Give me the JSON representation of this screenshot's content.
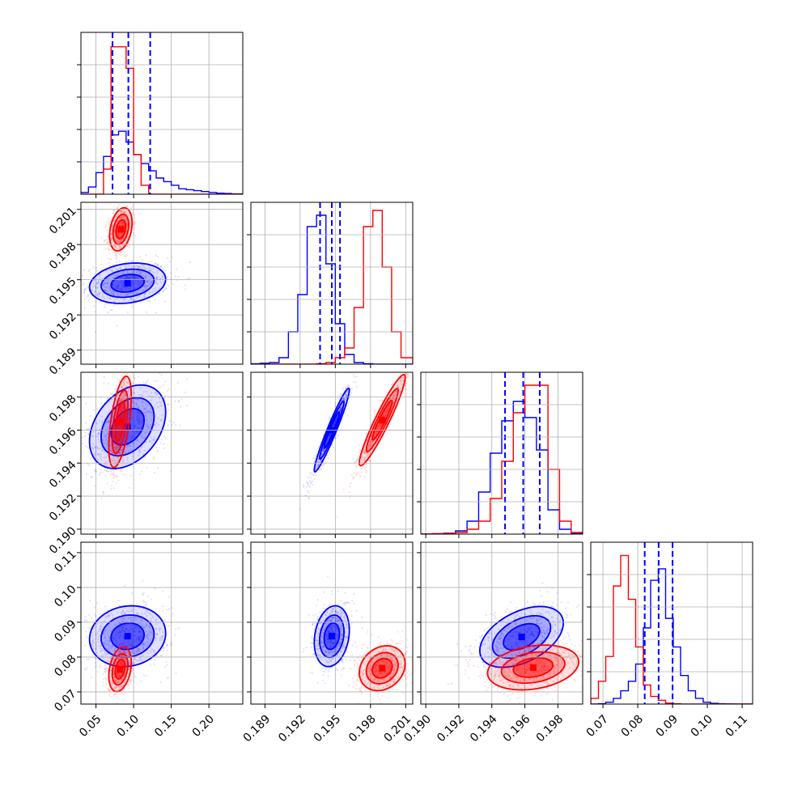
{
  "chart_data": {
    "type": "corner",
    "grid": true,
    "series_colors": {
      "blue": "#0000ff",
      "red": "#ff0000"
    },
    "parameters": [
      {
        "range": [
          0.03,
          0.245
        ],
        "ticks": [
          0.05,
          0.1,
          0.15,
          0.2
        ],
        "tick_labels": [
          "0.05",
          "0.10",
          "0.15",
          "0.20"
        ]
      },
      {
        "range": [
          0.1878,
          0.2016
        ],
        "ticks": [
          0.189,
          0.192,
          0.195,
          0.198,
          0.201
        ],
        "tick_labels": [
          "0.189",
          "0.192",
          "0.195",
          "0.198",
          "0.201"
        ]
      },
      {
        "range": [
          0.1897,
          0.1995
        ],
        "ticks": [
          0.19,
          0.192,
          0.194,
          0.196,
          0.198
        ],
        "tick_labels": [
          "0.190",
          "0.192",
          "0.194",
          "0.196",
          "0.198"
        ]
      },
      {
        "range": [
          0.0665,
          0.113
        ],
        "ticks": [
          0.07,
          0.08,
          0.09,
          0.1,
          0.11
        ],
        "tick_labels": [
          "0.07",
          "0.08",
          "0.09",
          "0.10",
          "0.11"
        ]
      }
    ],
    "diagonal": [
      {
        "bins": [
          0.03,
          0.04,
          0.05,
          0.06,
          0.07,
          0.08,
          0.09,
          0.1,
          0.11,
          0.12,
          0.13,
          0.14,
          0.15,
          0.16,
          0.17,
          0.18,
          0.19,
          0.2,
          0.21,
          0.22,
          0.23,
          0.245
        ],
        "blue": [
          0.01,
          0.04,
          0.12,
          0.21,
          0.33,
          0.35,
          0.29,
          0.22,
          0.17,
          0.13,
          0.09,
          0.07,
          0.05,
          0.03,
          0.025,
          0.02,
          0.015,
          0.01,
          0.006,
          0.004,
          0.002
        ],
        "red": [
          0,
          0,
          0,
          0.14,
          0.82,
          0.82,
          0.7,
          0.22,
          0.05,
          0,
          0,
          0,
          0,
          0,
          0,
          0,
          0,
          0,
          0,
          0,
          0
        ],
        "ymax": 0.9,
        "quantiles": [
          0.072,
          0.093,
          0.122
        ]
      },
      {
        "bins": [
          0.1878,
          0.1886,
          0.1894,
          0.1902,
          0.191,
          0.1918,
          0.1926,
          0.1934,
          0.1942,
          0.195,
          0.1958,
          0.1966,
          0.1974,
          0.1982,
          0.199,
          0.1998,
          0.2006,
          0.2016
        ],
        "blue": [
          0.003,
          0.006,
          0.01,
          0.04,
          0.2,
          0.43,
          0.85,
          0.92,
          0.62,
          0.25,
          0.06,
          0.01,
          0.003,
          0,
          0,
          0,
          0
        ],
        "red": [
          0,
          0,
          0,
          0,
          0,
          0,
          0,
          0.003,
          0.01,
          0.04,
          0.1,
          0.35,
          0.85,
          0.95,
          0.6,
          0.2,
          0.04
        ],
        "ymax": 1.0,
        "quantiles": [
          0.1937,
          0.1947,
          0.1954
        ]
      },
      {
        "bins": [
          0.1897,
          0.1904,
          0.1911,
          0.1918,
          0.1925,
          0.1932,
          0.1939,
          0.1946,
          0.1953,
          0.196,
          0.1967,
          0.1974,
          0.1981,
          0.1988,
          0.1995
        ],
        "blue": [
          0.001,
          0.003,
          0.006,
          0.02,
          0.08,
          0.26,
          0.5,
          0.7,
          0.82,
          0.72,
          0.52,
          0.15,
          0.03,
          0.005
        ],
        "red": [
          0.001,
          0.002,
          0.004,
          0.01,
          0.03,
          0.08,
          0.22,
          0.45,
          0.75,
          0.92,
          0.92,
          0.4,
          0.08,
          0.01
        ],
        "ymax": 1.0,
        "quantiles": [
          0.1948,
          0.1959,
          0.1969
        ]
      },
      {
        "bins": [
          0.0665,
          0.0687,
          0.0708,
          0.073,
          0.0751,
          0.0773,
          0.0794,
          0.0816,
          0.0837,
          0.0859,
          0.088,
          0.0902,
          0.0923,
          0.0945,
          0.0966,
          0.0988,
          0.1009,
          0.1031,
          0.1052,
          0.1074,
          0.113
        ],
        "blue": [
          0,
          0.002,
          0.01,
          0.03,
          0.07,
          0.12,
          0.21,
          0.4,
          0.65,
          0.71,
          0.45,
          0.3,
          0.15,
          0.07,
          0.03,
          0.01,
          0.004,
          0.002,
          0.001,
          0
        ],
        "red": [
          0.03,
          0.12,
          0.25,
          0.62,
          0.78,
          0.55,
          0.3,
          0.1,
          0.04,
          0.02,
          0.005,
          0.002,
          0,
          0,
          0,
          0,
          0,
          0,
          0,
          0
        ],
        "ymax": 0.85,
        "quantiles": [
          0.082,
          0.086,
          0.09
        ]
      }
    ],
    "pairs": [
      {
        "row": 1,
        "col": 0,
        "blue": {
          "center": [
            0.092,
            0.1947
          ],
          "sx": 0.022,
          "sy": 0.00075,
          "rho": 0.2,
          "rings": [
            1,
            1.6,
            2.3
          ]
        },
        "red": {
          "center": [
            0.083,
            0.1993
          ],
          "sx": 0.0065,
          "sy": 0.0008,
          "rho": 0.3,
          "rings": [
            1,
            1.6,
            2.3
          ]
        }
      },
      {
        "row": 2,
        "col": 0,
        "blue": {
          "center": [
            0.092,
            0.1962
          ],
          "sx": 0.022,
          "sy": 0.0011,
          "rho": 0.35,
          "rings": [
            1,
            1.6,
            2.3
          ]
        },
        "red": {
          "center": [
            0.082,
            0.1965
          ],
          "sx": 0.0065,
          "sy": 0.0012,
          "rho": 0.55,
          "rings": [
            1,
            1.6,
            2.3
          ]
        }
      },
      {
        "row": 2,
        "col": 1,
        "blue": {
          "center": [
            0.1947,
            0.196
          ],
          "sx": 0.00065,
          "sy": 0.0011,
          "rho": 0.96,
          "rings": [
            1,
            1.6,
            2.3
          ]
        },
        "red": {
          "center": [
            0.199,
            0.1966
          ],
          "sx": 0.00085,
          "sy": 0.0012,
          "rho": 0.94,
          "rings": [
            1,
            1.6,
            2.3
          ]
        }
      },
      {
        "row": 3,
        "col": 0,
        "blue": {
          "center": [
            0.092,
            0.086
          ],
          "sx": 0.022,
          "sy": 0.0038,
          "rho": 0.1,
          "rings": [
            1,
            1.6,
            2.3
          ]
        },
        "red": {
          "center": [
            0.082,
            0.0765
          ],
          "sx": 0.0065,
          "sy": 0.0028,
          "rho": 0.3,
          "rings": [
            1,
            1.6,
            2.3
          ]
        }
      },
      {
        "row": 3,
        "col": 1,
        "blue": {
          "center": [
            0.1947,
            0.086
          ],
          "sx": 0.00065,
          "sy": 0.0038,
          "rho": 0.2,
          "rings": [
            1,
            1.6,
            2.3
          ]
        },
        "red": {
          "center": [
            0.199,
            0.0768
          ],
          "sx": 0.00085,
          "sy": 0.0028,
          "rho": 0.2,
          "rings": [
            1,
            1.6,
            2.3
          ]
        }
      },
      {
        "row": 3,
        "col": 2,
        "blue": {
          "center": [
            0.1958,
            0.0858
          ],
          "sx": 0.0011,
          "sy": 0.0038,
          "rho": 0.45,
          "rings": [
            1,
            1.6,
            2.3
          ]
        },
        "red": {
          "center": [
            0.1965,
            0.077
          ],
          "sx": 0.0012,
          "sy": 0.0028,
          "rho": 0.25,
          "rings": [
            1,
            1.6,
            2.3
          ]
        }
      }
    ]
  }
}
